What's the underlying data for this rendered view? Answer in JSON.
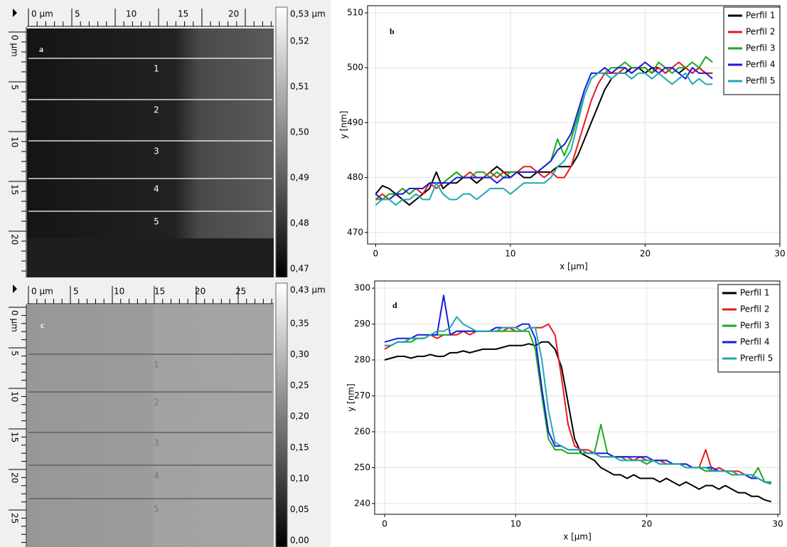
{
  "panels": [
    {
      "label": "a",
      "ruler_top": [
        "0 µm",
        "5",
        "10",
        "15",
        "20"
      ],
      "ruler_left": [
        "0 µm",
        "5",
        "10",
        "15",
        "20"
      ],
      "colorbar": [
        "0,53 µm",
        "0,52",
        "0,51",
        "0,50",
        "0,49",
        "0,48",
        "0,47"
      ],
      "profiles": [
        "1",
        "2",
        "3",
        "4",
        "5"
      ]
    },
    {
      "label": "c",
      "ruler_top": [
        "0 µm",
        "5",
        "10",
        "15",
        "20",
        "25"
      ],
      "ruler_left": [
        "0 µm",
        "5",
        "10",
        "15",
        "20",
        "25"
      ],
      "colorbar": [
        "0,43 µm",
        "0,35",
        "0,30",
        "0,25",
        "0,20",
        "0,15",
        "0,10",
        "0,05",
        "0,00"
      ],
      "profiles": [
        "1",
        "2",
        "3",
        "4",
        "5"
      ]
    }
  ],
  "chart_data": [
    {
      "type": "line",
      "panel_label": "b",
      "x_label": "x [µm]",
      "y_label": "y [nm]",
      "xlim": [
        -0.6,
        30
      ],
      "ylim": [
        467.9,
        511.3
      ],
      "xticks": [
        0,
        10,
        20,
        30
      ],
      "yticks": [
        470,
        480,
        490,
        500,
        510
      ],
      "grid": true,
      "legend": "upper right",
      "x": [
        0,
        0.5,
        1,
        1.5,
        2,
        2.5,
        3,
        3.5,
        4,
        4.5,
        5,
        5.5,
        6,
        6.5,
        7,
        7.5,
        8,
        8.5,
        9,
        9.5,
        10,
        10.5,
        11,
        11.5,
        12,
        12.5,
        13,
        13.5,
        14,
        14.5,
        15,
        15.5,
        16,
        16.5,
        17,
        17.5,
        18,
        18.5,
        19,
        19.5,
        20,
        20.5,
        21,
        21.5,
        22,
        22.5,
        23,
        23.5,
        24,
        24.5,
        25
      ],
      "series": [
        {
          "name": "Perfil 1",
          "color": "#000000",
          "values": [
            477,
            478.5,
            478,
            477,
            476,
            475,
            476,
            477,
            478,
            481,
            478,
            479,
            479,
            480,
            480,
            479,
            480,
            481,
            482,
            481,
            480,
            481,
            480,
            480,
            481,
            481,
            481,
            482,
            482,
            482,
            484,
            487,
            490,
            493,
            496,
            498,
            499,
            499,
            500,
            500,
            499,
            500,
            500,
            499,
            500,
            499,
            500,
            499,
            500,
            499,
            499
          ]
        },
        {
          "name": "Perfil 2",
          "color": "#e8191c",
          "values": [
            476,
            477,
            476,
            477,
            478,
            477,
            478,
            477,
            479,
            478,
            479,
            480,
            481,
            480,
            481,
            480,
            480,
            481,
            480,
            481,
            481,
            481,
            482,
            482,
            481,
            480,
            481,
            480,
            480,
            482,
            486,
            490,
            494,
            497,
            499,
            499,
            499,
            500,
            499,
            500,
            500,
            499,
            500,
            499,
            500,
            501,
            500,
            499,
            500,
            499,
            499
          ]
        },
        {
          "name": "Perfil 3",
          "color": "#1aaa1a",
          "values": [
            476,
            476,
            477,
            477,
            478,
            477,
            478,
            478,
            479,
            479,
            479,
            480,
            481,
            480,
            480,
            481,
            481,
            480,
            481,
            480,
            481,
            481,
            481,
            481,
            481,
            482,
            483,
            487,
            484,
            487,
            491,
            495,
            498,
            499,
            499,
            500,
            500,
            501,
            500,
            500,
            500,
            499,
            501,
            500,
            499,
            500,
            500,
            501,
            500,
            502,
            501
          ]
        },
        {
          "name": "Perfil 4",
          "color": "#1a1ae0",
          "values": [
            477,
            476,
            476,
            477,
            477,
            478,
            478,
            478,
            479,
            479,
            479,
            479,
            480,
            480,
            480,
            480,
            480,
            480,
            479,
            480,
            480,
            481,
            481,
            481,
            481,
            482,
            483,
            485,
            486,
            488,
            492,
            496,
            499,
            499,
            500,
            499,
            500,
            500,
            499,
            500,
            501,
            500,
            499,
            500,
            500,
            499,
            498,
            500,
            499,
            499,
            498
          ]
        },
        {
          "name": "Perfil 5",
          "color": "#20a8b0",
          "values": [
            475,
            476,
            476,
            475,
            476,
            476,
            477,
            476,
            476,
            479,
            477,
            476,
            476,
            477,
            477,
            476,
            477,
            478,
            478,
            478,
            477,
            478,
            479,
            479,
            479,
            479,
            480,
            482,
            483,
            485,
            490,
            495,
            498,
            499,
            499,
            498,
            499,
            499,
            498,
            499,
            499,
            498,
            499,
            498,
            497,
            498,
            499,
            497,
            498,
            497,
            497
          ]
        }
      ]
    },
    {
      "type": "line",
      "panel_label": "d",
      "x_label": "x [µm]",
      "y_label": "y [nm]",
      "xlim": [
        -0.76,
        30.16
      ],
      "ylim": [
        237,
        302
      ],
      "xticks": [
        0,
        10,
        20,
        30
      ],
      "yticks": [
        240,
        250,
        260,
        270,
        280,
        290,
        300
      ],
      "grid": true,
      "legend": "upper right",
      "x": [
        0,
        0.5,
        1,
        1.5,
        2,
        2.5,
        3,
        3.5,
        4,
        4.5,
        5,
        5.5,
        6,
        6.5,
        7,
        7.5,
        8,
        8.5,
        9,
        9.5,
        10,
        10.5,
        11,
        11.5,
        12,
        12.5,
        13,
        13.5,
        14,
        14.5,
        15,
        15.5,
        16,
        16.5,
        17,
        17.5,
        18,
        18.5,
        19,
        19.5,
        20,
        20.5,
        21,
        21.5,
        22,
        22.5,
        23,
        23.5,
        24,
        24.5,
        25,
        25.5,
        26,
        26.5,
        27,
        27.5,
        28,
        28.5,
        29,
        29.5
      ],
      "series": [
        {
          "name": "Perfil 1",
          "color": "#000000",
          "values": [
            280,
            280.5,
            281,
            281,
            280.5,
            281,
            281,
            281.5,
            281,
            281,
            282,
            282,
            282.5,
            282,
            282.5,
            283,
            283,
            283,
            283.5,
            284,
            284,
            284,
            284.5,
            284,
            285,
            285,
            283,
            278,
            268,
            258,
            254,
            253,
            252,
            250,
            249,
            248,
            248,
            247,
            248,
            247,
            247,
            247,
            246,
            247,
            246,
            245,
            246,
            245,
            244,
            245,
            245,
            244,
            245,
            244,
            243,
            243,
            242,
            242,
            241,
            240.5
          ]
        },
        {
          "name": "Perfil 2",
          "color": "#e8191c",
          "values": [
            283,
            284,
            285,
            285,
            286,
            286,
            286,
            287,
            286,
            287,
            287,
            287,
            288,
            287,
            288,
            288,
            288,
            288,
            288,
            289,
            288,
            288,
            289,
            289,
            289,
            290,
            287,
            275,
            262,
            256,
            255,
            255,
            254,
            253,
            253,
            253,
            253,
            253,
            252,
            253,
            252,
            252,
            252,
            251,
            251,
            251,
            251,
            250,
            250,
            255,
            249,
            250,
            249,
            249,
            249,
            248,
            248,
            247,
            246,
            245.5
          ]
        },
        {
          "name": "Perfil 3",
          "color": "#1aaa1a",
          "values": [
            284,
            284,
            285,
            285,
            285,
            286,
            286,
            287,
            287,
            287,
            287,
            288,
            288,
            288,
            288,
            288,
            288,
            288,
            288,
            288,
            288,
            288,
            288,
            283,
            270,
            258,
            255,
            255,
            254,
            254,
            254,
            254,
            254,
            262,
            254,
            253,
            253,
            252,
            252,
            252,
            251,
            252,
            251,
            251,
            251,
            251,
            250,
            250,
            250,
            249,
            249,
            249,
            249,
            248,
            248,
            248,
            247,
            250,
            246,
            245.5
          ]
        },
        {
          "name": "Perfil 4",
          "color": "#1a1ae0",
          "values": [
            285,
            285.5,
            286,
            286,
            286,
            287,
            287,
            287,
            287,
            298,
            287,
            288,
            288,
            288,
            288,
            288,
            288,
            289,
            289,
            289,
            289,
            290,
            290,
            286,
            272,
            260,
            256,
            256,
            255,
            255,
            255,
            254,
            254,
            254,
            254,
            253,
            253,
            253,
            253,
            253,
            253,
            252,
            252,
            252,
            251,
            251,
            251,
            250,
            250,
            250,
            250,
            249,
            249,
            249,
            248,
            248,
            247,
            247,
            246,
            246
          ]
        },
        {
          "name": "Prerfil 5",
          "color": "#20a8b0",
          "values": [
            284,
            284,
            285,
            285,
            286,
            286,
            286,
            287,
            288,
            288,
            289,
            292,
            290,
            289,
            288,
            288,
            288,
            288,
            289,
            289,
            289,
            288,
            289,
            289,
            280,
            266,
            257,
            256,
            255,
            255,
            255,
            254,
            254,
            253,
            253,
            253,
            252,
            252,
            252,
            252,
            252,
            252,
            251,
            251,
            251,
            251,
            250,
            250,
            250,
            250,
            249,
            249,
            249,
            249,
            248,
            248,
            248,
            247,
            246,
            246
          ]
        }
      ]
    }
  ]
}
